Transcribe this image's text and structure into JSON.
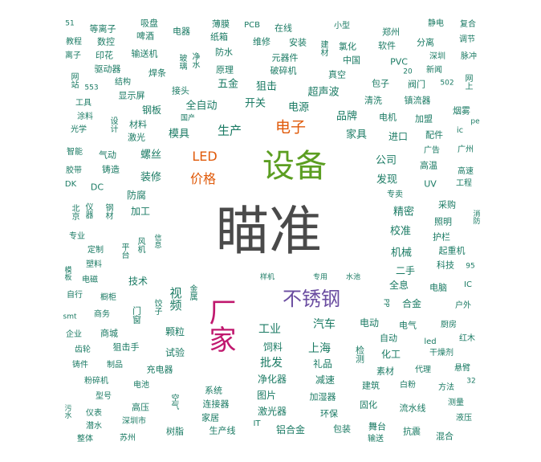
{
  "colors": {
    "teal": "#1a7a63",
    "dark": "#4a4a4a",
    "orange": "#e05a0a",
    "green": "#5c9e22",
    "purple": "#6a4ca0",
    "magenta": "#c0186e"
  },
  "words": [
    {
      "text": "瞄准",
      "tone": "dark"
    },
    {
      "text": "设备",
      "tone": "green"
    },
    {
      "text": "厂家",
      "tone": "magenta"
    },
    {
      "text": "不锈钢",
      "tone": "purple"
    },
    {
      "text": "电子",
      "tone": "orange"
    },
    {
      "text": "LED",
      "tone": "orange"
    },
    {
      "text": "价格",
      "tone": "orange"
    },
    {
      "text": "51",
      "tone": "teal"
    },
    {
      "text": "等离子",
      "tone": "teal"
    },
    {
      "text": "吸盘",
      "tone": "teal"
    },
    {
      "text": "电器",
      "tone": "teal"
    },
    {
      "text": "薄膜",
      "tone": "teal"
    },
    {
      "text": "PCB",
      "tone": "teal"
    },
    {
      "text": "在线",
      "tone": "teal"
    },
    {
      "text": "小型",
      "tone": "teal"
    },
    {
      "text": "郑州",
      "tone": "teal"
    },
    {
      "text": "静电",
      "tone": "teal"
    },
    {
      "text": "复合",
      "tone": "teal"
    },
    {
      "text": "教程",
      "tone": "teal"
    },
    {
      "text": "数控",
      "tone": "teal"
    },
    {
      "text": "啤酒",
      "tone": "teal"
    },
    {
      "text": "纸箱",
      "tone": "teal"
    },
    {
      "text": "维修",
      "tone": "teal"
    },
    {
      "text": "安装",
      "tone": "teal"
    },
    {
      "text": "建材",
      "tone": "teal"
    },
    {
      "text": "氯化",
      "tone": "teal"
    },
    {
      "text": "软件",
      "tone": "teal"
    },
    {
      "text": "分离",
      "tone": "teal"
    },
    {
      "text": "调节",
      "tone": "teal"
    },
    {
      "text": "离子",
      "tone": "teal"
    },
    {
      "text": "印花",
      "tone": "teal"
    },
    {
      "text": "输送机",
      "tone": "teal"
    },
    {
      "text": "玻璃",
      "tone": "teal"
    },
    {
      "text": "净水",
      "tone": "teal"
    },
    {
      "text": "防水",
      "tone": "teal"
    },
    {
      "text": "元器件",
      "tone": "teal"
    },
    {
      "text": "中国",
      "tone": "teal"
    },
    {
      "text": "PVC",
      "tone": "teal"
    },
    {
      "text": "深圳",
      "tone": "teal"
    },
    {
      "text": "脉冲",
      "tone": "teal"
    },
    {
      "text": "驱动器",
      "tone": "teal"
    },
    {
      "text": "焊条",
      "tone": "teal"
    },
    {
      "text": "原理",
      "tone": "teal"
    },
    {
      "text": "破碎机",
      "tone": "teal"
    },
    {
      "text": "真空",
      "tone": "teal"
    },
    {
      "text": "20",
      "tone": "teal"
    },
    {
      "text": "新闻",
      "tone": "teal"
    },
    {
      "text": "网站",
      "tone": "teal"
    },
    {
      "text": "结构",
      "tone": "teal"
    },
    {
      "text": "553",
      "tone": "teal"
    },
    {
      "text": "显示屏",
      "tone": "teal"
    },
    {
      "text": "接头",
      "tone": "teal"
    },
    {
      "text": "五金",
      "tone": "teal"
    },
    {
      "text": "狙击",
      "tone": "teal"
    },
    {
      "text": "超声波",
      "tone": "teal"
    },
    {
      "text": "包子",
      "tone": "teal"
    },
    {
      "text": "阀门",
      "tone": "teal"
    },
    {
      "text": "502",
      "tone": "teal"
    },
    {
      "text": "网上",
      "tone": "teal"
    },
    {
      "text": "工具",
      "tone": "teal"
    },
    {
      "text": "全自动",
      "tone": "teal"
    },
    {
      "text": "开关",
      "tone": "teal"
    },
    {
      "text": "电源",
      "tone": "teal"
    },
    {
      "text": "清洗",
      "tone": "teal"
    },
    {
      "text": "镇流器",
      "tone": "teal"
    },
    {
      "text": "涂料",
      "tone": "teal"
    },
    {
      "text": "钢板",
      "tone": "teal"
    },
    {
      "text": "国产",
      "tone": "teal"
    },
    {
      "text": "品牌",
      "tone": "teal"
    },
    {
      "text": "电机",
      "tone": "teal"
    },
    {
      "text": "加盟",
      "tone": "teal"
    },
    {
      "text": "烟雾",
      "tone": "teal"
    },
    {
      "text": "设计",
      "tone": "teal"
    },
    {
      "text": "材料",
      "tone": "teal"
    },
    {
      "text": "pe",
      "tone": "teal"
    },
    {
      "text": "光学",
      "tone": "teal"
    },
    {
      "text": "模具",
      "tone": "teal"
    },
    {
      "text": "生产",
      "tone": "teal"
    },
    {
      "text": "家具",
      "tone": "teal"
    },
    {
      "text": "进口",
      "tone": "teal"
    },
    {
      "text": "配件",
      "tone": "teal"
    },
    {
      "text": "ic",
      "tone": "teal"
    },
    {
      "text": "激光",
      "tone": "teal"
    },
    {
      "text": "智能",
      "tone": "teal"
    },
    {
      "text": "气动",
      "tone": "teal"
    },
    {
      "text": "螺丝",
      "tone": "teal"
    },
    {
      "text": "广告",
      "tone": "teal"
    },
    {
      "text": "广州",
      "tone": "teal"
    },
    {
      "text": "胶带",
      "tone": "teal"
    },
    {
      "text": "铸造",
      "tone": "teal"
    },
    {
      "text": "公司",
      "tone": "teal"
    },
    {
      "text": "高温",
      "tone": "teal"
    },
    {
      "text": "高速",
      "tone": "teal"
    },
    {
      "text": "DK",
      "tone": "teal"
    },
    {
      "text": "DC",
      "tone": "teal"
    },
    {
      "text": "装修",
      "tone": "teal"
    },
    {
      "text": "发现",
      "tone": "teal"
    },
    {
      "text": "UV",
      "tone": "teal"
    },
    {
      "text": "工程",
      "tone": "teal"
    },
    {
      "text": "防腐",
      "tone": "teal"
    },
    {
      "text": "专卖",
      "tone": "teal"
    },
    {
      "text": "北京",
      "tone": "teal"
    },
    {
      "text": "仪器",
      "tone": "teal"
    },
    {
      "text": "钢材",
      "tone": "teal"
    },
    {
      "text": "加工",
      "tone": "teal"
    },
    {
      "text": "精密",
      "tone": "teal"
    },
    {
      "text": "采购",
      "tone": "teal"
    },
    {
      "text": "照明",
      "tone": "teal"
    },
    {
      "text": "消防",
      "tone": "teal"
    },
    {
      "text": "专业",
      "tone": "teal"
    },
    {
      "text": "校准",
      "tone": "teal"
    },
    {
      "text": "护栏",
      "tone": "teal"
    },
    {
      "text": "定制",
      "tone": "teal"
    },
    {
      "text": "平台",
      "tone": "teal"
    },
    {
      "text": "风机",
      "tone": "teal"
    },
    {
      "text": "信息",
      "tone": "teal"
    },
    {
      "text": "机械",
      "tone": "teal"
    },
    {
      "text": "起重机",
      "tone": "teal"
    },
    {
      "text": "塑料",
      "tone": "teal"
    },
    {
      "text": "科技",
      "tone": "teal"
    },
    {
      "text": "95",
      "tone": "teal"
    },
    {
      "text": "二手",
      "tone": "teal"
    },
    {
      "text": "模板",
      "tone": "teal"
    },
    {
      "text": "样机",
      "tone": "teal"
    },
    {
      "text": "专用",
      "tone": "teal"
    },
    {
      "text": "水池",
      "tone": "teal"
    },
    {
      "text": "电磁",
      "tone": "teal"
    },
    {
      "text": "技术",
      "tone": "teal"
    },
    {
      "text": "全息",
      "tone": "teal"
    },
    {
      "text": "电脑",
      "tone": "teal"
    },
    {
      "text": "IC",
      "tone": "teal"
    },
    {
      "text": "自行",
      "tone": "teal"
    },
    {
      "text": "橱柜",
      "tone": "teal"
    },
    {
      "text": "视频",
      "tone": "teal"
    },
    {
      "text": "金属",
      "tone": "teal"
    },
    {
      "text": "PP",
      "tone": "teal"
    },
    {
      "text": "合金",
      "tone": "teal"
    },
    {
      "text": "户外",
      "tone": "teal"
    },
    {
      "text": "smt",
      "tone": "teal"
    },
    {
      "text": "商务",
      "tone": "teal"
    },
    {
      "text": "门窗",
      "tone": "teal"
    },
    {
      "text": "饺子",
      "tone": "teal"
    },
    {
      "text": "电动",
      "tone": "teal"
    },
    {
      "text": "电气",
      "tone": "teal"
    },
    {
      "text": "厨房",
      "tone": "teal"
    },
    {
      "text": "企业",
      "tone": "teal"
    },
    {
      "text": "商城",
      "tone": "teal"
    },
    {
      "text": "颗粒",
      "tone": "teal"
    },
    {
      "text": "工业",
      "tone": "teal"
    },
    {
      "text": "汽车",
      "tone": "teal"
    },
    {
      "text": "自动",
      "tone": "teal"
    },
    {
      "text": "led",
      "tone": "teal"
    },
    {
      "text": "红木",
      "tone": "teal"
    },
    {
      "text": "齿轮",
      "tone": "teal"
    },
    {
      "text": "狙击手",
      "tone": "teal"
    },
    {
      "text": "试验",
      "tone": "teal"
    },
    {
      "text": "饲料",
      "tone": "teal"
    },
    {
      "text": "上海",
      "tone": "teal"
    },
    {
      "text": "检测",
      "tone": "teal"
    },
    {
      "text": "化工",
      "tone": "teal"
    },
    {
      "text": "干燥剂",
      "tone": "teal"
    },
    {
      "text": "铸件",
      "tone": "teal"
    },
    {
      "text": "制品",
      "tone": "teal"
    },
    {
      "text": "充电器",
      "tone": "teal"
    },
    {
      "text": "批发",
      "tone": "teal"
    },
    {
      "text": "礼品",
      "tone": "teal"
    },
    {
      "text": "素材",
      "tone": "teal"
    },
    {
      "text": "代理",
      "tone": "teal"
    },
    {
      "text": "悬臂",
      "tone": "teal"
    },
    {
      "text": "粉碎机",
      "tone": "teal"
    },
    {
      "text": "电池",
      "tone": "teal"
    },
    {
      "text": "净化器",
      "tone": "teal"
    },
    {
      "text": "减速",
      "tone": "teal"
    },
    {
      "text": "建筑",
      "tone": "teal"
    },
    {
      "text": "白粉",
      "tone": "teal"
    },
    {
      "text": "32",
      "tone": "teal"
    },
    {
      "text": "方法",
      "tone": "teal"
    },
    {
      "text": "型号",
      "tone": "teal"
    },
    {
      "text": "系统",
      "tone": "teal"
    },
    {
      "text": "图片",
      "tone": "teal"
    },
    {
      "text": "加湿器",
      "tone": "teal"
    },
    {
      "text": "测量",
      "tone": "teal"
    },
    {
      "text": "污水",
      "tone": "teal"
    },
    {
      "text": "仪表",
      "tone": "teal"
    },
    {
      "text": "高压",
      "tone": "teal"
    },
    {
      "text": "空气",
      "tone": "teal"
    },
    {
      "text": "连接器",
      "tone": "teal"
    },
    {
      "text": "激光器",
      "tone": "teal"
    },
    {
      "text": "环保",
      "tone": "teal"
    },
    {
      "text": "固化",
      "tone": "teal"
    },
    {
      "text": "流水线",
      "tone": "teal"
    },
    {
      "text": "液压",
      "tone": "teal"
    },
    {
      "text": "潜水",
      "tone": "teal"
    },
    {
      "text": "深圳市",
      "tone": "teal"
    },
    {
      "text": "家居",
      "tone": "teal"
    },
    {
      "text": "IT",
      "tone": "teal"
    },
    {
      "text": "舞台",
      "tone": "teal"
    },
    {
      "text": "整体",
      "tone": "teal"
    },
    {
      "text": "苏州",
      "tone": "teal"
    },
    {
      "text": "树脂",
      "tone": "teal"
    },
    {
      "text": "生产线",
      "tone": "teal"
    },
    {
      "text": "铝合金",
      "tone": "teal"
    },
    {
      "text": "包装",
      "tone": "teal"
    },
    {
      "text": "输送",
      "tone": "teal"
    },
    {
      "text": "抗震",
      "tone": "teal"
    },
    {
      "text": "混合",
      "tone": "teal"
    }
  ]
}
